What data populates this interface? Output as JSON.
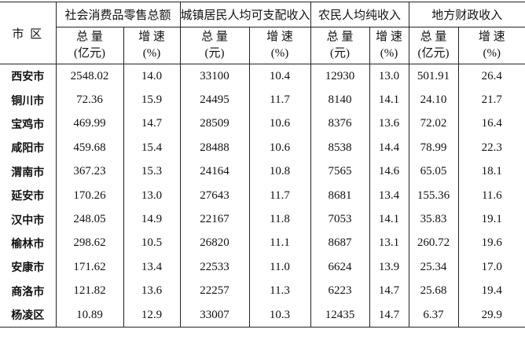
{
  "table": {
    "corner": "市 区",
    "groups": [
      "社会消费品零售总额",
      "城镇居民人均可支配收入",
      "农民人均纯收入",
      "地方财政收入"
    ],
    "subheaders": [
      {
        "label": "总 量",
        "unit": "(亿元)"
      },
      {
        "label": "增 速",
        "unit": "(%)"
      },
      {
        "label": "总 量",
        "unit": "(元)"
      },
      {
        "label": "增 速",
        "unit": "(%)"
      },
      {
        "label": "总 量",
        "unit": "(元)"
      },
      {
        "label": "增 速",
        "unit": "(%)"
      },
      {
        "label": "总 量",
        "unit": "(亿元)"
      },
      {
        "label": "增 速",
        "unit": "(%)"
      }
    ],
    "rows": [
      [
        "西安市",
        "2548.02",
        "14.0",
        "33100",
        "10.4",
        "12930",
        "13.0",
        "501.91",
        "26.4"
      ],
      [
        "铜川市",
        "72.36",
        "15.9",
        "24495",
        "11.7",
        "8140",
        "14.1",
        "24.10",
        "21.7"
      ],
      [
        "宝鸡市",
        "469.99",
        "14.7",
        "28509",
        "10.6",
        "8376",
        "13.6",
        "72.02",
        "16.4"
      ],
      [
        "咸阳市",
        "459.68",
        "15.4",
        "28488",
        "10.6",
        "8538",
        "14.4",
        "78.99",
        "22.3"
      ],
      [
        "渭南市",
        "367.23",
        "15.3",
        "24164",
        "10.8",
        "7565",
        "14.6",
        "65.05",
        "18.1"
      ],
      [
        "延安市",
        "170.26",
        "13.0",
        "27643",
        "11.7",
        "8681",
        "13.4",
        "155.36",
        "11.6"
      ],
      [
        "汉中市",
        "248.05",
        "14.9",
        "22167",
        "11.8",
        "7053",
        "14.1",
        "35.83",
        "19.1"
      ],
      [
        "榆林市",
        "298.62",
        "10.5",
        "26820",
        "11.1",
        "8687",
        "13.1",
        "260.72",
        "19.6"
      ],
      [
        "安康市",
        "171.62",
        "13.4",
        "22533",
        "11.0",
        "6624",
        "13.9",
        "25.34",
        "17.0"
      ],
      [
        "商洛市",
        "121.82",
        "13.6",
        "22257",
        "11.3",
        "6223",
        "14.7",
        "25.68",
        "19.4"
      ],
      [
        "杨凌区",
        "10.89",
        "12.9",
        "33007",
        "10.3",
        "12435",
        "14.7",
        "6.37",
        "29.9"
      ]
    ]
  }
}
